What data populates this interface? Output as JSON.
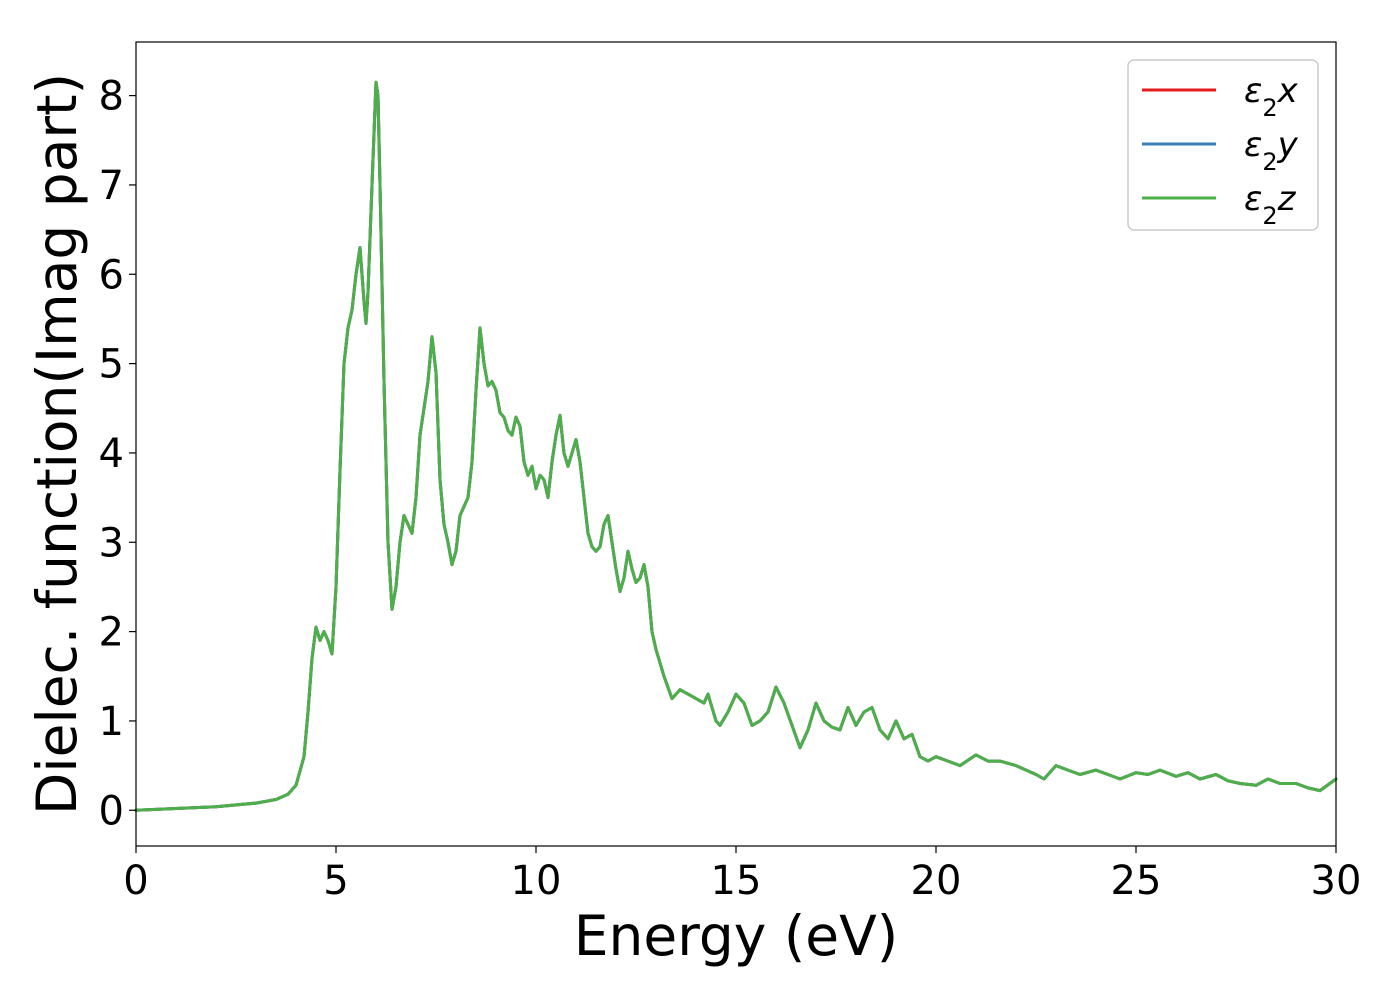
{
  "chart_data": {
    "type": "line",
    "title": "",
    "xlabel": "Energy (eV)",
    "ylabel": "Dielec. function(Imag part)",
    "xlim": [
      0,
      30
    ],
    "ylim": [
      -0.4,
      8.6
    ],
    "xticks": [
      0,
      5,
      10,
      15,
      20,
      25,
      30
    ],
    "yticks": [
      0,
      1,
      2,
      3,
      4,
      5,
      6,
      7,
      8
    ],
    "grid": false,
    "legend": {
      "position": "top-right"
    },
    "series": [
      {
        "name": "ε2x",
        "sym": "ε",
        "sub": "2",
        "axis": "x",
        "color": "#e41a1c"
      },
      {
        "name": "ε2y",
        "sym": "ε",
        "sub": "2",
        "axis": "y",
        "color": "#377eb8"
      },
      {
        "name": "ε2z",
        "sym": "ε",
        "sub": "2",
        "axis": "z",
        "color": "#4daf4a"
      }
    ],
    "x": [
      0,
      1,
      2,
      3,
      3.5,
      3.8,
      4.0,
      4.2,
      4.3,
      4.4,
      4.5,
      4.6,
      4.7,
      4.8,
      4.9,
      5.0,
      5.1,
      5.2,
      5.3,
      5.4,
      5.5,
      5.6,
      5.7,
      5.75,
      5.8,
      5.9,
      6.0,
      6.05,
      6.1,
      6.2,
      6.3,
      6.4,
      6.5,
      6.6,
      6.7,
      6.8,
      6.9,
      7.0,
      7.1,
      7.2,
      7.3,
      7.4,
      7.5,
      7.6,
      7.7,
      7.8,
      7.9,
      8.0,
      8.1,
      8.2,
      8.3,
      8.4,
      8.5,
      8.6,
      8.7,
      8.8,
      8.9,
      9.0,
      9.1,
      9.2,
      9.3,
      9.4,
      9.5,
      9.6,
      9.7,
      9.8,
      9.9,
      10.0,
      10.1,
      10.2,
      10.3,
      10.4,
      10.5,
      10.6,
      10.7,
      10.8,
      10.9,
      11.0,
      11.1,
      11.2,
      11.3,
      11.4,
      11.5,
      11.6,
      11.7,
      11.8,
      11.9,
      12.0,
      12.1,
      12.2,
      12.3,
      12.4,
      12.5,
      12.6,
      12.7,
      12.8,
      12.9,
      13.0,
      13.2,
      13.4,
      13.6,
      13.8,
      14.0,
      14.2,
      14.3,
      14.4,
      14.5,
      14.6,
      14.8,
      15.0,
      15.2,
      15.4,
      15.6,
      15.8,
      16.0,
      16.2,
      16.4,
      16.6,
      16.8,
      17.0,
      17.2,
      17.4,
      17.6,
      17.8,
      18.0,
      18.2,
      18.4,
      18.6,
      18.8,
      19.0,
      19.2,
      19.4,
      19.6,
      19.8,
      20.0,
      20.3,
      20.6,
      21.0,
      21.3,
      21.6,
      22.0,
      22.5,
      22.7,
      23.0,
      23.3,
      23.6,
      24.0,
      24.3,
      24.6,
      25.0,
      25.3,
      25.6,
      26.0,
      26.3,
      26.6,
      27.0,
      27.3,
      27.6,
      28.0,
      28.3,
      28.6,
      29.0,
      29.3,
      29.6,
      30.0
    ],
    "y": [
      0.0,
      0.02,
      0.04,
      0.08,
      0.12,
      0.18,
      0.28,
      0.6,
      1.1,
      1.7,
      2.05,
      1.9,
      2.0,
      1.9,
      1.75,
      2.5,
      3.8,
      5.0,
      5.4,
      5.6,
      6.0,
      6.3,
      5.7,
      5.45,
      5.8,
      7.0,
      8.15,
      8.0,
      7.0,
      4.8,
      3.0,
      2.25,
      2.5,
      3.0,
      3.3,
      3.2,
      3.1,
      3.5,
      4.2,
      4.5,
      4.8,
      5.3,
      4.9,
      3.7,
      3.2,
      3.0,
      2.75,
      2.9,
      3.3,
      3.4,
      3.5,
      3.9,
      4.7,
      5.4,
      5.0,
      4.75,
      4.8,
      4.7,
      4.45,
      4.4,
      4.25,
      4.2,
      4.4,
      4.3,
      3.9,
      3.75,
      3.85,
      3.6,
      3.75,
      3.7,
      3.5,
      3.9,
      4.2,
      4.42,
      4.0,
      3.85,
      4.0,
      4.15,
      3.9,
      3.5,
      3.1,
      2.95,
      2.9,
      2.95,
      3.2,
      3.3,
      3.0,
      2.7,
      2.45,
      2.6,
      2.9,
      2.7,
      2.55,
      2.6,
      2.75,
      2.5,
      2.0,
      1.8,
      1.5,
      1.25,
      1.35,
      1.3,
      1.25,
      1.2,
      1.3,
      1.15,
      1.0,
      0.95,
      1.1,
      1.3,
      1.2,
      0.95,
      1.0,
      1.1,
      1.38,
      1.2,
      0.95,
      0.7,
      0.9,
      1.2,
      1.0,
      0.93,
      0.9,
      1.15,
      0.95,
      1.1,
      1.15,
      0.9,
      0.8,
      1.0,
      0.8,
      0.85,
      0.6,
      0.55,
      0.6,
      0.55,
      0.5,
      0.62,
      0.55,
      0.55,
      0.5,
      0.4,
      0.35,
      0.5,
      0.45,
      0.4,
      0.45,
      0.4,
      0.35,
      0.42,
      0.4,
      0.45,
      0.38,
      0.42,
      0.35,
      0.4,
      0.33,
      0.3,
      0.28,
      0.35,
      0.3,
      0.3,
      0.25,
      0.22,
      0.35
    ]
  }
}
